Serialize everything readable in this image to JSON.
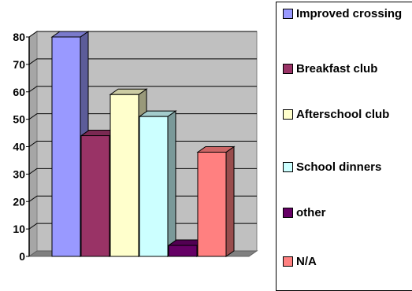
{
  "chart_data": {
    "type": "bar",
    "categories": [
      "Improved crossing",
      "Breakfast club",
      "Afterschool club",
      "School dinners",
      "other",
      "N/A"
    ],
    "values": [
      80,
      44,
      59,
      51,
      4,
      38
    ],
    "colors": [
      "#9999ff",
      "#993366",
      "#ffffcc",
      "#ccffff",
      "#660066",
      "#ff8080"
    ],
    "ylim": [
      0,
      80
    ],
    "yticks": [
      "0",
      "10",
      "20",
      "30",
      "40",
      "50",
      "60",
      "70",
      "80"
    ],
    "grid": true,
    "legend_position": "right",
    "title": "",
    "xlabel": "",
    "ylabel": ""
  }
}
